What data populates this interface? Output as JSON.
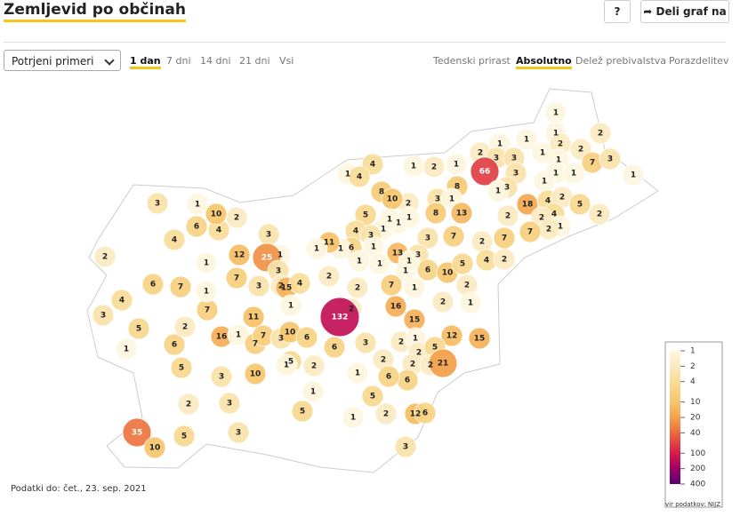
{
  "header": {
    "title": "Zemljevid po občinah",
    "help": "?",
    "share": "Deli graf na"
  },
  "controls": {
    "measure": "Potrjeni primeri",
    "periods": [
      "1 dan",
      "7 dni",
      "14 dni",
      "21 dni",
      "Vsi"
    ],
    "views": [
      "Tedenski prirast",
      "Absolutno",
      "Delež prebivalstva",
      "Porazdelitev"
    ]
  },
  "map": {
    "municipality_values": [
      1,
      1,
      2,
      1,
      1,
      2,
      3,
      3,
      1,
      2,
      2,
      1,
      7,
      3,
      1,
      66,
      3,
      1,
      1,
      1,
      3,
      1,
      8,
      1,
      2,
      1,
      4,
      1,
      4,
      8,
      2,
      3,
      1,
      13,
      18,
      4,
      2,
      5,
      2,
      4,
      2,
      1,
      2,
      7,
      2,
      7,
      2,
      7,
      3,
      8,
      10,
      5,
      4,
      1,
      1,
      1,
      1,
      3,
      1,
      6,
      13,
      3,
      6,
      10,
      5,
      4,
      2,
      1,
      1,
      1,
      1,
      1,
      11,
      1,
      3,
      1,
      25,
      12,
      7,
      3,
      3,
      2,
      15,
      4,
      2,
      2,
      7,
      1,
      2,
      1,
      2,
      16,
      2,
      132,
      1,
      11,
      15,
      12,
      15,
      16,
      1,
      7,
      7,
      3,
      10,
      6,
      6,
      3,
      2,
      1,
      2,
      5,
      2,
      2,
      2,
      21,
      6,
      1,
      6,
      2,
      5,
      1,
      5,
      1,
      2,
      12,
      6,
      1,
      5,
      3,
      10,
      3,
      3,
      2,
      5,
      6,
      2,
      7,
      1,
      7,
      5,
      6,
      4,
      3,
      1,
      1,
      2,
      4,
      6,
      4,
      1,
      10,
      2,
      3,
      3,
      5,
      35,
      10
    ],
    "legend": {
      "ticks": [
        1,
        2,
        4,
        10,
        20,
        40,
        100,
        200,
        400
      ],
      "colors": [
        "#fdf6df",
        "#fbeac0",
        "#f9dc98",
        "#f6c66b",
        "#f4a24a",
        "#ec6a3c",
        "#d81b4a",
        "#a0006a",
        "#5a006e"
      ],
      "source": "vir podatkov: NIJZ"
    }
  },
  "footer": "Podatki do: čet., 23. sep. 2021"
}
